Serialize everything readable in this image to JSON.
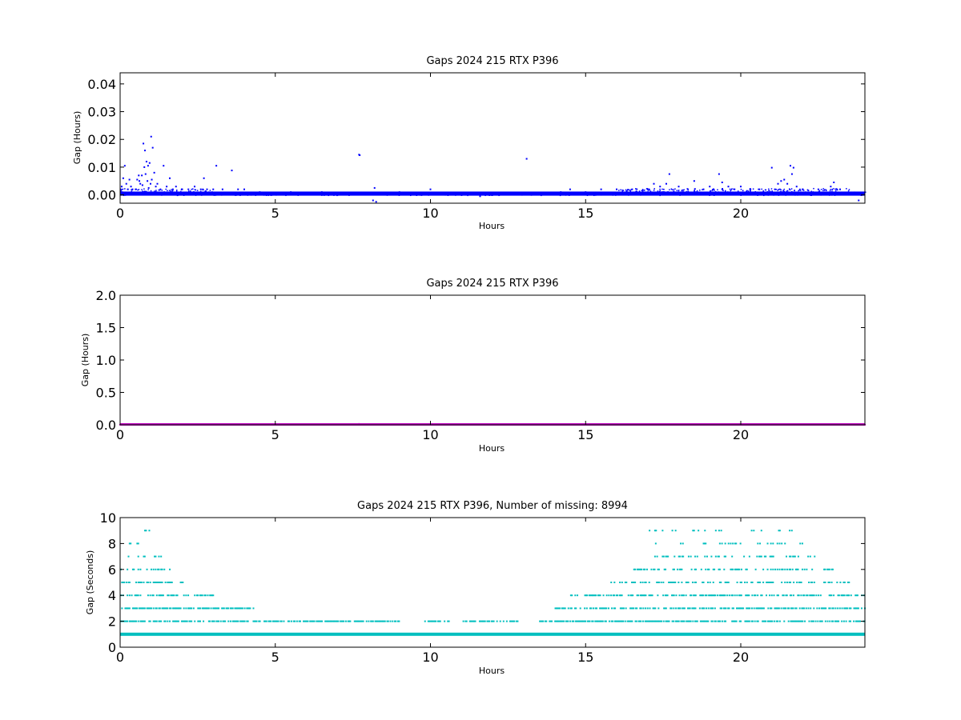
{
  "chart_data": [
    {
      "type": "scatter",
      "title": "Gaps 2024 215 RTX  P396",
      "xlabel": "Hours",
      "ylabel": "Gap (Hours)",
      "xlim": [
        0,
        24
      ],
      "ylim": [
        -0.003,
        0.044
      ],
      "xticks": [
        "0",
        "5",
        "10",
        "15",
        "20"
      ],
      "xtick_values": [
        0,
        5,
        10,
        15,
        20
      ],
      "yticks": [
        "0.00",
        "0.01",
        "0.02",
        "0.03",
        "0.04"
      ],
      "ytick_values": [
        0,
        0.01,
        0.02,
        0.03,
        0.04
      ],
      "color": "#0000ff",
      "grid": false,
      "series": [
        {
          "values_description_free": true,
          "x": [
            0.05,
            0.1,
            0.15,
            0.2,
            0.25,
            0.3,
            0.35,
            0.4,
            0.5,
            0.55,
            0.6,
            0.62,
            0.65,
            0.7,
            0.72,
            0.75,
            0.78,
            0.8,
            0.82,
            0.85,
            0.88,
            0.9,
            0.92,
            0.95,
            0.98,
            1.0,
            1.02,
            1.05,
            1.1,
            1.15,
            1.2,
            1.3,
            1.4,
            1.5,
            1.6,
            1.7,
            1.8,
            2.0,
            2.2,
            2.4,
            2.6,
            2.7,
            2.8,
            3.0,
            3.1,
            3.3,
            3.6,
            3.8,
            4.0,
            4.5,
            5.5,
            6.5,
            7.7,
            7.72,
            8.15,
            8.2,
            8.25,
            9.0,
            10.0,
            11.5,
            11.6,
            13.1,
            14.2,
            14.5,
            15.0,
            15.5,
            16.0,
            16.5,
            17.0,
            17.2,
            17.4,
            17.6,
            17.7,
            18.0,
            18.3,
            18.5,
            18.8,
            19.0,
            19.3,
            19.4,
            19.6,
            19.8,
            20.0,
            20.3,
            20.6,
            21.0,
            21.1,
            21.2,
            21.3,
            21.4,
            21.5,
            21.6,
            21.65,
            21.7,
            21.8,
            22.0,
            22.5,
            22.9,
            23.0,
            23.1,
            23.2,
            23.8
          ],
          "y": [
            0.003,
            0.006,
            0.0105,
            0.004,
            0.002,
            0.0055,
            0.003,
            0.002,
            0.002,
            0.0055,
            0.007,
            0.005,
            0.004,
            0.007,
            0.0035,
            0.0185,
            0.01,
            0.016,
            0.0075,
            0.012,
            0.005,
            0.0105,
            0.0025,
            0.0115,
            0.004,
            0.021,
            0.0055,
            0.017,
            0.008,
            0.003,
            0.004,
            0.002,
            0.0105,
            0.003,
            0.006,
            0.002,
            0.003,
            0.002,
            0.002,
            0.003,
            0.002,
            0.006,
            0.002,
            0.002,
            0.0105,
            0.002,
            0.0088,
            0.002,
            0.002,
            0.001,
            0.001,
            0.001,
            0.0145,
            0.0143,
            -0.002,
            0.0025,
            -0.0025,
            0.001,
            0.002,
            0.0005,
            -0.0005,
            0.013,
            0.001,
            0.002,
            0.001,
            0.002,
            0.002,
            0.002,
            0.002,
            0.004,
            0.003,
            0.004,
            0.0075,
            0.003,
            0.002,
            0.005,
            0.002,
            0.003,
            0.0075,
            0.0045,
            0.003,
            0.002,
            0.003,
            0.002,
            0.002,
            0.0098,
            0.002,
            0.004,
            0.005,
            0.0055,
            0.004,
            0.0105,
            0.0075,
            0.0098,
            0.003,
            0.002,
            0.002,
            0.003,
            0.0045,
            0.002,
            0.002,
            -0.002
          ]
        }
      ]
    },
    {
      "type": "scatter",
      "title": "Gaps 2024 215 RTX  P396",
      "xlabel": "Hours",
      "ylabel": "Gap (Hours)",
      "xlim": [
        0,
        24
      ],
      "ylim": [
        0,
        2.0
      ],
      "xticks": [
        "0",
        "5",
        "10",
        "15",
        "20"
      ],
      "xtick_values": [
        0,
        5,
        10,
        15,
        20
      ],
      "yticks": [
        "0.0",
        "0.5",
        "1.0",
        "1.5",
        "2.0"
      ],
      "ytick_values": [
        0,
        0.5,
        1.0,
        1.5,
        2.0
      ],
      "color": "#bf00bf",
      "grid": false,
      "series": [
        {
          "x": [
            0,
            7.7,
            24
          ],
          "y": [
            0.001,
            0.014,
            0.001
          ]
        }
      ]
    },
    {
      "type": "scatter",
      "title": "Gaps 2024 215 RTX  P396, Number of missing: 8994",
      "xlabel": "Hours",
      "ylabel": "Gap (Seconds)",
      "xlim": [
        0,
        24
      ],
      "ylim": [
        0,
        10
      ],
      "xticks": [
        "0",
        "5",
        "10",
        "15",
        "20"
      ],
      "xtick_values": [
        0,
        5,
        10,
        15,
        20
      ],
      "yticks": [
        "0",
        "2",
        "4",
        "6",
        "8",
        "10"
      ],
      "ytick_values": [
        0,
        2,
        4,
        6,
        8,
        10
      ],
      "color": "#00bfbf",
      "grid": false,
      "series": [
        {
          "levels": [
            1,
            2,
            3,
            4,
            5,
            6,
            7,
            8,
            9
          ],
          "ranges_by_level": {
            "1": [
              [
                0,
                24
              ]
            ],
            "2": [
              [
                0,
                5.5
              ],
              [
                5.5,
                9.0
              ],
              [
                9.8,
                10.6
              ],
              [
                11.0,
                12.8
              ],
              [
                13.5,
                24
              ]
            ],
            "3": [
              [
                0,
                4.3
              ],
              [
                14.0,
                24
              ]
            ],
            "4": [
              [
                0,
                3.0
              ],
              [
                14.5,
                24
              ]
            ],
            "5": [
              [
                0,
                2.0
              ],
              [
                15.8,
                23.5
              ]
            ],
            "6": [
              [
                0,
                1.6
              ],
              [
                16.5,
                23.0
              ]
            ],
            "7": [
              [
                0,
                1.4
              ],
              [
                17.0,
                22.5
              ]
            ],
            "8": [
              [
                0,
                1.1
              ],
              [
                17.2,
                22.0
              ]
            ],
            "9": [
              [
                0.6,
                1.0
              ],
              [
                17.0,
                22.2
              ]
            ]
          }
        }
      ]
    }
  ]
}
